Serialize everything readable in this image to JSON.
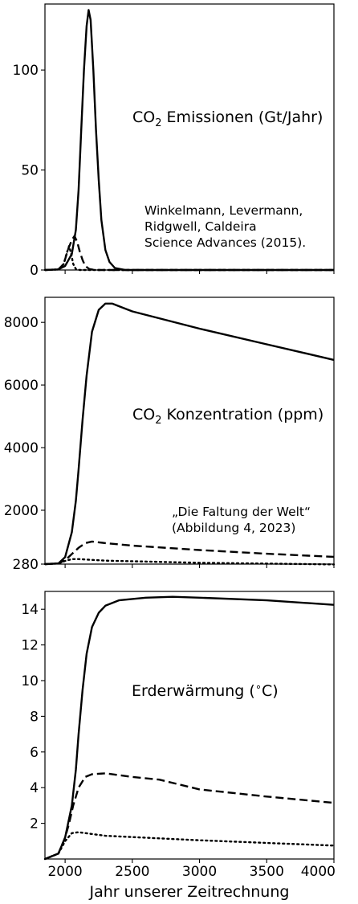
{
  "x_axis": {
    "label": "Jahr unserer Zeitrechnung",
    "range": [
      1850,
      4000
    ],
    "ticks": [
      2000,
      2500,
      3000,
      3500,
      4000
    ]
  },
  "chart_data": [
    {
      "type": "line",
      "title": "CO₂ Emissionen (Gt/Jahr)",
      "title_main": "CO",
      "title_sub": "2",
      "title_rest": " Emissionen (Gt/Jahr)",
      "ylim": [
        0,
        133
      ],
      "yticks": [
        0,
        50,
        100
      ],
      "annotation": [
        "Winkelmann, Levermann,",
        "Ridgwell, Caldeira",
        "Science Advances (2015)."
      ],
      "series": [
        {
          "style": "solid",
          "points": [
            [
              1850,
              0
            ],
            [
              1950,
              0.3
            ],
            [
              2000,
              2
            ],
            [
              2050,
              8
            ],
            [
              2080,
              20
            ],
            [
              2100,
              40
            ],
            [
              2120,
              70
            ],
            [
              2140,
              100
            ],
            [
              2160,
              122
            ],
            [
              2175,
              130
            ],
            [
              2190,
              125
            ],
            [
              2210,
              100
            ],
            [
              2230,
              70
            ],
            [
              2250,
              45
            ],
            [
              2270,
              25
            ],
            [
              2300,
              10
            ],
            [
              2330,
              4
            ],
            [
              2370,
              1
            ],
            [
              2450,
              0
            ],
            [
              4000,
              0
            ]
          ]
        },
        {
          "style": "dashed",
          "points": [
            [
              1850,
              0
            ],
            [
              1950,
              0.3
            ],
            [
              1990,
              3
            ],
            [
              2020,
              10
            ],
            [
              2050,
              15
            ],
            [
              2070,
              17
            ],
            [
              2090,
              14
            ],
            [
              2110,
              9
            ],
            [
              2130,
              5
            ],
            [
              2150,
              2
            ],
            [
              2180,
              0.5
            ],
            [
              2220,
              0
            ],
            [
              4000,
              0
            ]
          ]
        },
        {
          "style": "dotted",
          "points": [
            [
              1850,
              0
            ],
            [
              1950,
              0.3
            ],
            [
              1990,
              3
            ],
            [
              2010,
              8
            ],
            [
              2030,
              12
            ],
            [
              2045,
              8
            ],
            [
              2060,
              3
            ],
            [
              2080,
              0.5
            ],
            [
              2110,
              0
            ],
            [
              4000,
              0
            ]
          ]
        }
      ]
    },
    {
      "type": "line",
      "title": "CO₂ Konzentration (ppm)",
      "title_main": "CO",
      "title_sub": "2",
      "title_rest": " Konzentration (ppm)",
      "ylim": [
        280,
        8800
      ],
      "yticks": [
        280,
        2000,
        4000,
        6000,
        8000
      ],
      "annotation": [
        "„Die Faltung der Welt“",
        "(Abbildung 4, 2023)"
      ],
      "series": [
        {
          "style": "solid",
          "points": [
            [
              1850,
              280
            ],
            [
              1950,
              300
            ],
            [
              2000,
              500
            ],
            [
              2050,
              1300
            ],
            [
              2080,
              2300
            ],
            [
              2100,
              3300
            ],
            [
              2130,
              4900
            ],
            [
              2160,
              6300
            ],
            [
              2200,
              7700
            ],
            [
              2250,
              8400
            ],
            [
              2300,
              8600
            ],
            [
              2350,
              8600
            ],
            [
              2500,
              8350
            ],
            [
              3000,
              7800
            ],
            [
              3500,
              7300
            ],
            [
              4000,
              6800
            ]
          ]
        },
        {
          "style": "dashed",
          "points": [
            [
              1850,
              280
            ],
            [
              1950,
              300
            ],
            [
              2000,
              400
            ],
            [
              2050,
              600
            ],
            [
              2100,
              800
            ],
            [
              2150,
              950
            ],
            [
              2200,
              1000
            ],
            [
              2300,
              950
            ],
            [
              2500,
              870
            ],
            [
              3000,
              730
            ],
            [
              3500,
              610
            ],
            [
              4000,
              510
            ]
          ]
        },
        {
          "style": "dotted",
          "points": [
            [
              1850,
              280
            ],
            [
              1950,
              300
            ],
            [
              2000,
              380
            ],
            [
              2050,
              440
            ],
            [
              2100,
              440
            ],
            [
              2300,
              390
            ],
            [
              3000,
              320
            ],
            [
              4000,
              270
            ]
          ]
        }
      ]
    },
    {
      "type": "line",
      "title": "Erderwärmung (∘C)",
      "title_main": "Erderwärmung (",
      "title_deg": "∘",
      "title_rest": "C)",
      "ylim": [
        0,
        15
      ],
      "yticks": [
        2,
        4,
        6,
        8,
        10,
        12,
        14
      ],
      "series": [
        {
          "style": "solid",
          "points": [
            [
              1850,
              0
            ],
            [
              1950,
              0.3
            ],
            [
              2000,
              1.2
            ],
            [
              2050,
              3
            ],
            [
              2080,
              5
            ],
            [
              2100,
              7
            ],
            [
              2130,
              9.5
            ],
            [
              2160,
              11.5
            ],
            [
              2200,
              13
            ],
            [
              2250,
              13.8
            ],
            [
              2300,
              14.2
            ],
            [
              2400,
              14.5
            ],
            [
              2600,
              14.65
            ],
            [
              2800,
              14.7
            ],
            [
              3000,
              14.65
            ],
            [
              3500,
              14.5
            ],
            [
              4000,
              14.25
            ]
          ]
        },
        {
          "style": "dashed",
          "points": [
            [
              1850,
              0
            ],
            [
              1950,
              0.3
            ],
            [
              2000,
              1.2
            ],
            [
              2030,
              2
            ],
            [
              2060,
              3
            ],
            [
              2100,
              4
            ],
            [
              2150,
              4.6
            ],
            [
              2200,
              4.75
            ],
            [
              2300,
              4.8
            ],
            [
              2500,
              4.6
            ],
            [
              2700,
              4.45
            ],
            [
              3000,
              3.9
            ],
            [
              3500,
              3.5
            ],
            [
              4000,
              3.15
            ]
          ]
        },
        {
          "style": "dotted",
          "points": [
            [
              1850,
              0
            ],
            [
              1950,
              0.3
            ],
            [
              2000,
              1
            ],
            [
              2050,
              1.45
            ],
            [
              2100,
              1.5
            ],
            [
              2300,
              1.3
            ],
            [
              3000,
              1.05
            ],
            [
              3500,
              0.9
            ],
            [
              4000,
              0.75
            ]
          ]
        }
      ]
    }
  ]
}
